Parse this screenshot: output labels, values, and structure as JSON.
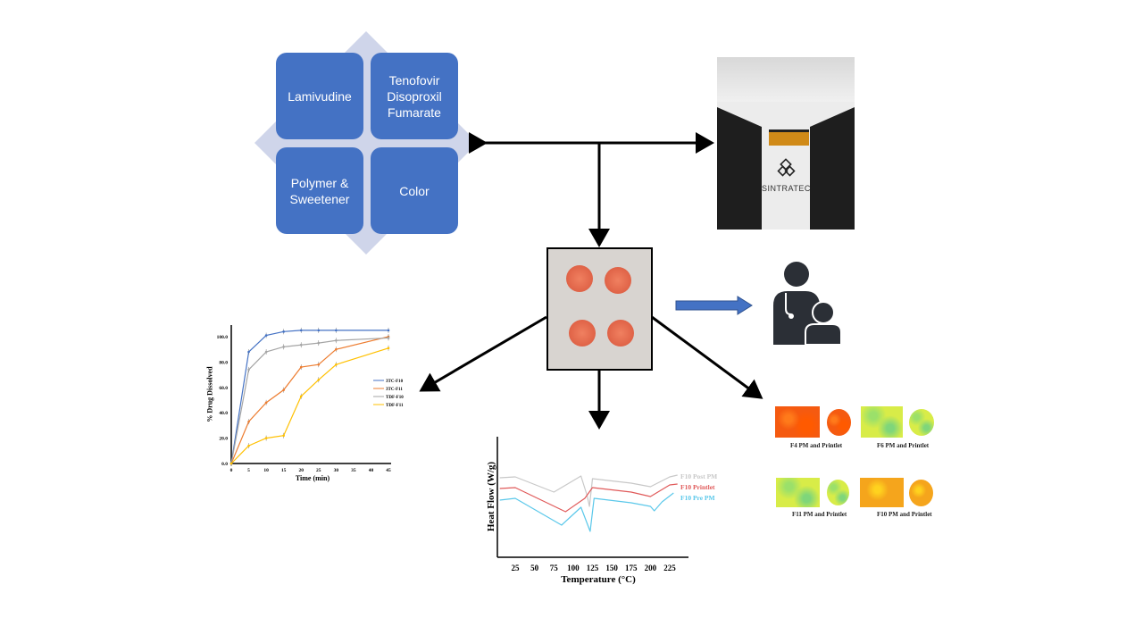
{
  "ingredients": [
    {
      "label": "Lamivudine"
    },
    {
      "label": "Tenofovir Disoproxil Fumarate"
    },
    {
      "label": "Polymer & Sweetener"
    },
    {
      "label": "Color"
    }
  ],
  "printer": {
    "brand": "SINTRATEC"
  },
  "colors": {
    "tile": "#4472c4",
    "diamond": "#cfd5ea",
    "arrow": "#000000",
    "blue_arrow": "#4472c4"
  },
  "icons": {
    "patient": "doctor-child-icon",
    "printer": "sls-printer-photo",
    "tablets": "printlet-photo"
  },
  "imaging": {
    "panels": [
      {
        "label": "F4 PM and Printlet",
        "color": "red"
      },
      {
        "label": "F6 PM and Printlet",
        "color": "green"
      },
      {
        "label": "F11 PM and Printlet",
        "color": "green"
      },
      {
        "label": "F10 PM and Printlet",
        "color": "orange"
      }
    ]
  },
  "chart_data": [
    {
      "type": "line",
      "xlabel": "Time (min)",
      "ylabel": "% Drug Dissolved",
      "xlim": [
        0,
        45
      ],
      "ylim": [
        0,
        100
      ],
      "xticks": [
        "0",
        "5",
        "10",
        "15",
        "20",
        "25",
        "30",
        "35",
        "40",
        "45"
      ],
      "yticks": [
        "0.0",
        "20.0",
        "40.0",
        "60.0",
        "80.0",
        "100.0"
      ],
      "legend": "right",
      "x": [
        0,
        5,
        10,
        15,
        20,
        25,
        30,
        45
      ],
      "series": [
        {
          "name": "3TC-F10",
          "color": "#4472c4",
          "values": [
            0,
            88,
            101,
            104,
            105,
            105,
            105,
            105
          ]
        },
        {
          "name": "3TC-F11",
          "color": "#ed7d31",
          "values": [
            0,
            33,
            48,
            58,
            76,
            78,
            90,
            100
          ]
        },
        {
          "name": "TDF-F10",
          "color": "#a5a5a5",
          "values": [
            0,
            74,
            88,
            92,
            93.5,
            95,
            97,
            99
          ]
        },
        {
          "name": "TDF-F11",
          "color": "#ffc000",
          "values": [
            0,
            14,
            20,
            22,
            53,
            66,
            78,
            91
          ]
        }
      ]
    },
    {
      "type": "line",
      "xlabel": "Temperature (°C)",
      "ylabel": "Heat Flow (W/g)",
      "xlim": [
        0,
        250
      ],
      "xticks": [
        "25",
        "50",
        "75",
        "100",
        "125",
        "150",
        "175",
        "200",
        "225"
      ],
      "legend": "right",
      "series": [
        {
          "name": "F10 Post PM",
          "color": "#c8c8c8",
          "points": [
            [
              5,
              8.9
            ],
            [
              25,
              9.0
            ],
            [
              75,
              7.3
            ],
            [
              110,
              9.1
            ],
            [
              118,
              6.9
            ],
            [
              121,
              5.7
            ],
            [
              125,
              8.8
            ],
            [
              175,
              8.3
            ],
            [
              200,
              7.9
            ],
            [
              225,
              9.0
            ],
            [
              235,
              9.2
            ]
          ]
        },
        {
          "name": "F10 Printlet",
          "color": "#e05a5a",
          "points": [
            [
              5,
              7.7
            ],
            [
              25,
              7.8
            ],
            [
              90,
              5.1
            ],
            [
              115,
              6.6
            ],
            [
              125,
              7.8
            ],
            [
              175,
              7.3
            ],
            [
              200,
              6.8
            ],
            [
              225,
              8.1
            ],
            [
              235,
              8.2
            ]
          ]
        },
        {
          "name": "F10 Pre PM",
          "color": "#5bc8ea",
          "points": [
            [
              5,
              6.4
            ],
            [
              25,
              6.6
            ],
            [
              85,
              3.6
            ],
            [
              110,
              5.6
            ],
            [
              122,
              2.9
            ],
            [
              127,
              6.6
            ],
            [
              175,
              6.1
            ],
            [
              200,
              5.7
            ],
            [
              205,
              5.2
            ],
            [
              215,
              6.2
            ],
            [
              230,
              7.2
            ]
          ]
        }
      ]
    }
  ]
}
